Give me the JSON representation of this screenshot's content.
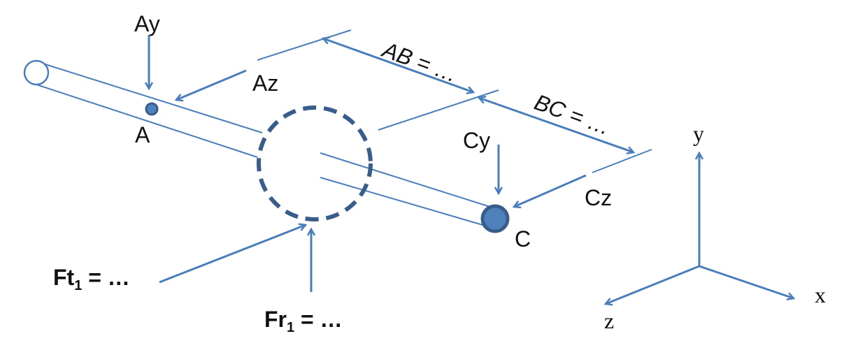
{
  "colors": {
    "line": "#4a7ebb",
    "fill": "#4f81bd",
    "dash": "#385d8a",
    "text": "#111111"
  },
  "labels": {
    "ay": "Ay",
    "az": "Az",
    "a": "A",
    "ab": "AB = …",
    "bc": "BC = …",
    "cy": "Cy",
    "cz": "Cz",
    "c": "C",
    "ft_main": "Ft",
    "ft_sub": "1",
    "ft_rest": " = …",
    "fr_main": "Fr",
    "fr_sub": "1",
    "fr_rest": " = …"
  },
  "axes": {
    "x": "x",
    "y": "y",
    "z": "z"
  }
}
